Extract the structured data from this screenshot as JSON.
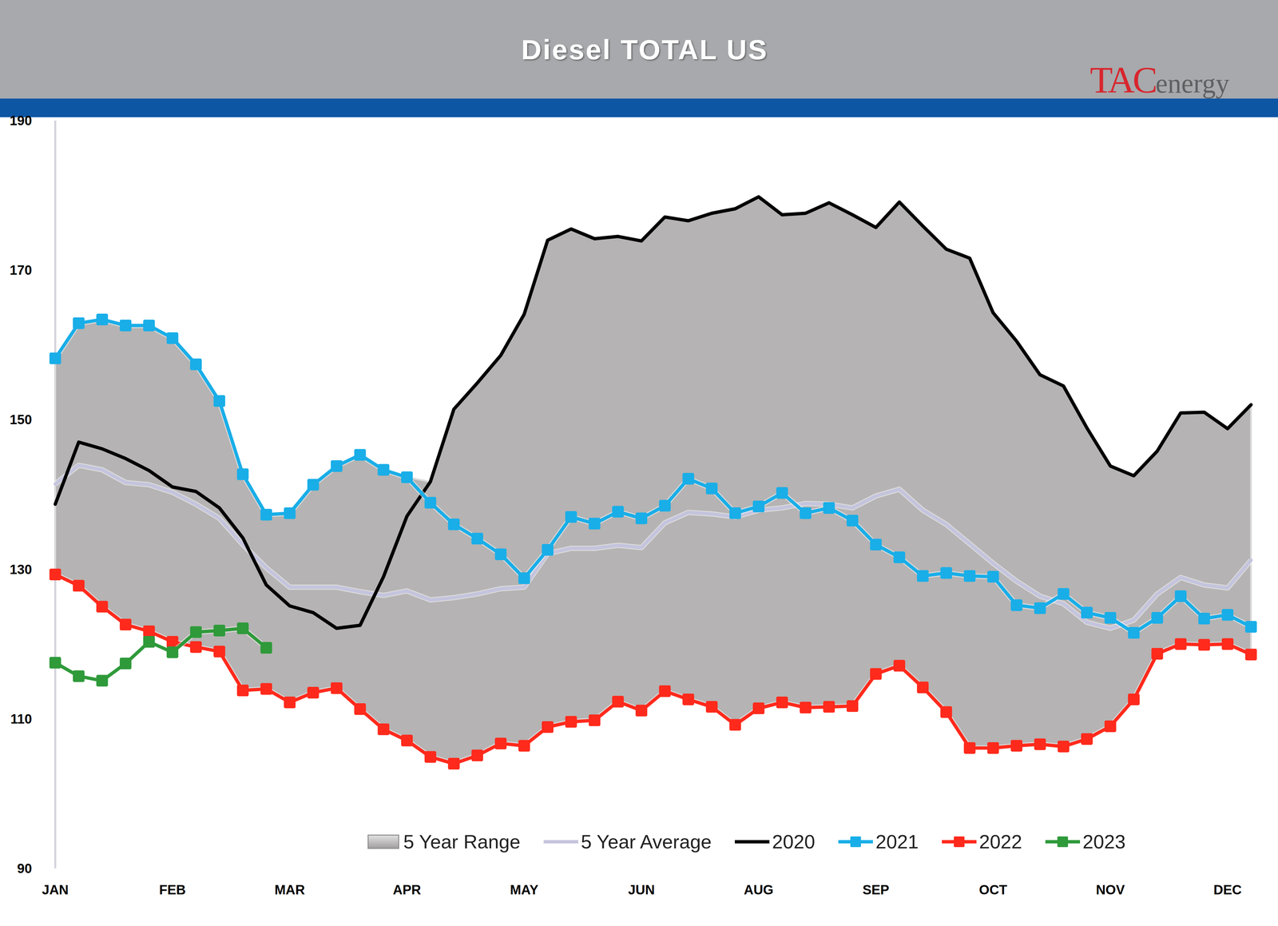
{
  "chart_data": {
    "type": "line",
    "title": "Diesel TOTAL US",
    "annotations": [
      "TAC",
      "energy"
    ],
    "categories": [
      "JAN",
      null,
      null,
      null,
      null,
      "FEB",
      null,
      null,
      null,
      null,
      "MAR",
      null,
      null,
      null,
      null,
      "APR",
      null,
      null,
      null,
      null,
      "MAY",
      null,
      null,
      null,
      null,
      "JUN",
      null,
      null,
      null,
      null,
      "AUG",
      null,
      null,
      null,
      null,
      "SEP",
      null,
      null,
      null,
      null,
      "OCT",
      null,
      null,
      null,
      null,
      "NOV",
      null,
      null,
      null,
      null,
      "DEC",
      null
    ],
    "ylim": [
      90,
      190
    ],
    "yticks": [
      90,
      110,
      130,
      150,
      170,
      190
    ],
    "grid": false,
    "legend": "bottom",
    "series": [
      {
        "name": "5 Year Range",
        "type": "area",
        "color": "#b5b3b3",
        "upper": [
          158.2,
          162.9,
          163.4,
          162.6,
          162.6,
          160.9,
          157.4,
          152.5,
          142.7,
          137.3,
          137.5,
          141.3,
          143.8,
          145.3,
          143.3,
          142.3,
          141.7,
          151.4,
          154.9,
          158.6,
          164.1,
          174.0,
          175.5,
          174.2,
          174.5,
          173.9,
          177.1,
          176.6,
          177.6,
          178.2,
          179.8,
          177.4,
          177.6,
          179.0,
          177.4,
          175.7,
          179.1,
          175.9,
          172.8,
          171.6,
          164.3,
          160.5,
          156.0,
          154.5,
          148.9,
          143.8,
          142.5,
          145.8,
          150.9,
          151.0,
          148.8,
          152.0
        ],
        "lower": [
          129.3,
          127.8,
          125.0,
          122.6,
          121.7,
          120.3,
          119.6,
          119.0,
          113.8,
          114.0,
          112.2,
          113.5,
          114.1,
          111.3,
          108.6,
          107.1,
          104.9,
          104.0,
          105.1,
          106.7,
          106.4,
          108.9,
          109.6,
          109.8,
          112.3,
          111.1,
          113.7,
          112.6,
          111.6,
          109.2,
          111.4,
          112.2,
          111.5,
          111.6,
          111.7,
          116.0,
          117.1,
          114.2,
          110.9,
          106.1,
          106.1,
          106.4,
          106.6,
          106.3,
          107.3,
          109.0,
          112.6,
          118.7,
          120.0,
          119.9,
          120.0,
          118.6
        ]
      },
      {
        "name": "5 Year Average",
        "type": "line",
        "color": "#c4c4de",
        "marker": "none",
        "line_style": "solid",
        "values": [
          141.4,
          143.9,
          143.3,
          141.6,
          141.3,
          140.3,
          138.7,
          136.8,
          133.3,
          130.2,
          127.6,
          127.6,
          127.6,
          127.0,
          126.5,
          127.1,
          125.9,
          126.2,
          126.7,
          127.4,
          127.6,
          132.1,
          132.8,
          132.8,
          133.2,
          132.9,
          136.2,
          137.6,
          137.4,
          137.0,
          137.9,
          138.2,
          138.8,
          138.7,
          138.2,
          139.8,
          140.7,
          137.9,
          136.0,
          133.4,
          130.8,
          128.4,
          126.4,
          125.4,
          122.9,
          122.1,
          123.2,
          126.7,
          128.9,
          127.9,
          127.5,
          131.2
        ]
      },
      {
        "name": "2020",
        "type": "line",
        "color": "#000000",
        "marker": "none",
        "line_style": "solid",
        "values": [
          138.7,
          147.0,
          146.1,
          144.8,
          143.2,
          141.0,
          140.4,
          138.2,
          134.2,
          127.9,
          125.1,
          124.2,
          122.1,
          122.5,
          129.0,
          137.1,
          141.7,
          151.4,
          154.9,
          158.6,
          164.1,
          174.0,
          175.5,
          174.2,
          174.5,
          173.9,
          177.1,
          176.6,
          177.6,
          178.2,
          179.8,
          177.4,
          177.6,
          179.0,
          177.4,
          175.7,
          179.1,
          175.9,
          172.8,
          171.6,
          164.3,
          160.5,
          156.0,
          154.5,
          148.9,
          143.8,
          142.5,
          145.8,
          150.9,
          151.0,
          148.8,
          152.0
        ]
      },
      {
        "name": "2021",
        "type": "line",
        "color": "#19aee8",
        "marker": "square",
        "line_style": "solid",
        "values": [
          158.2,
          162.9,
          163.4,
          162.6,
          162.6,
          160.9,
          157.4,
          152.5,
          142.7,
          137.3,
          137.5,
          141.3,
          143.8,
          145.3,
          143.3,
          142.3,
          138.9,
          136.0,
          134.1,
          132.0,
          128.8,
          132.6,
          137.0,
          136.1,
          137.7,
          136.8,
          138.5,
          142.1,
          140.8,
          137.5,
          138.4,
          140.2,
          137.5,
          138.2,
          136.5,
          133.3,
          131.6,
          129.1,
          129.5,
          129.1,
          129.0,
          125.2,
          124.8,
          126.7,
          124.2,
          123.5,
          121.5,
          123.5,
          126.4,
          123.4,
          123.9,
          122.3
        ]
      },
      {
        "name": "2022",
        "type": "line",
        "color": "#ff2a1c",
        "marker": "square",
        "line_style": "solid",
        "values": [
          129.3,
          127.8,
          125.0,
          122.6,
          121.7,
          120.3,
          119.6,
          119.0,
          113.8,
          114.0,
          112.2,
          113.5,
          114.1,
          111.3,
          108.6,
          107.1,
          104.9,
          104.0,
          105.1,
          106.7,
          106.4,
          108.9,
          109.6,
          109.8,
          112.3,
          111.1,
          113.7,
          112.6,
          111.6,
          109.2,
          111.4,
          112.2,
          111.5,
          111.6,
          111.7,
          116.0,
          117.1,
          114.2,
          110.9,
          106.1,
          106.1,
          106.4,
          106.6,
          106.3,
          107.3,
          109.0,
          112.6,
          118.7,
          120.0,
          119.9,
          120.0,
          118.6
        ]
      },
      {
        "name": "2023",
        "type": "line",
        "color": "#2f9a3a",
        "marker": "square",
        "line_style": "solid",
        "values": [
          117.5,
          115.7,
          115.1,
          117.4,
          120.3,
          118.9,
          121.6,
          121.8,
          122.1,
          119.5,
          null,
          null,
          null,
          null,
          null,
          null,
          null,
          null,
          null,
          null,
          null,
          null,
          null,
          null,
          null,
          null,
          null,
          null,
          null,
          null,
          null,
          null,
          null,
          null,
          null,
          null,
          null,
          null,
          null,
          null,
          null,
          null,
          null,
          null,
          null,
          null,
          null,
          null,
          null,
          null,
          null,
          null
        ]
      }
    ]
  }
}
